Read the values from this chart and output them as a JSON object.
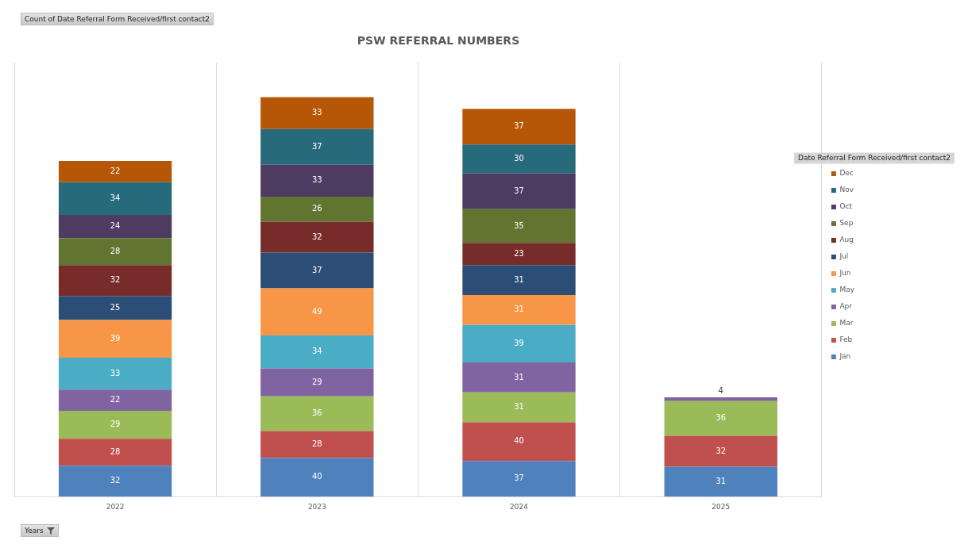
{
  "chart_data": {
    "type": "bar",
    "title": "PSW REFERRAL NUMBERS",
    "xlabel": "Years",
    "legend_title": "Date Referral Form Received/first contact2",
    "annotations": [
      "Count of Date Referral Form Received/first contact2"
    ],
    "categories": [
      "2022",
      "2023",
      "2024",
      "2025"
    ],
    "stacked": true,
    "data_labels": true,
    "grid": "x",
    "legend": "right",
    "tick_labels": "x",
    "ylim": [
      0,
      450
    ],
    "series": [
      {
        "name": "Jan",
        "color": "#4f81bd",
        "values": [
          32,
          40,
          37,
          31
        ]
      },
      {
        "name": "Feb",
        "color": "#c0504d",
        "values": [
          28,
          28,
          40,
          32
        ]
      },
      {
        "name": "Mar",
        "color": "#9bbb59",
        "values": [
          29,
          36,
          31,
          36
        ]
      },
      {
        "name": "Apr",
        "color": "#8064a2",
        "values": [
          22,
          29,
          31,
          4
        ]
      },
      {
        "name": "May",
        "color": "#4bacc6",
        "values": [
          33,
          34,
          39,
          null
        ]
      },
      {
        "name": "Jun",
        "color": "#f79646",
        "values": [
          39,
          49,
          31,
          null
        ]
      },
      {
        "name": "Jul",
        "color": "#2c4d75",
        "values": [
          25,
          37,
          31,
          null
        ]
      },
      {
        "name": "Aug",
        "color": "#772c2a",
        "values": [
          32,
          32,
          23,
          null
        ]
      },
      {
        "name": "Sep",
        "color": "#5f7530",
        "values": [
          28,
          26,
          35,
          null
        ]
      },
      {
        "name": "Oct",
        "color": "#4d3b62",
        "values": [
          24,
          33,
          37,
          null
        ]
      },
      {
        "name": "Nov",
        "color": "#276a7c",
        "values": [
          34,
          37,
          30,
          null
        ]
      },
      {
        "name": "Dec",
        "color": "#b65708",
        "values": [
          22,
          33,
          37,
          null
        ]
      }
    ]
  }
}
